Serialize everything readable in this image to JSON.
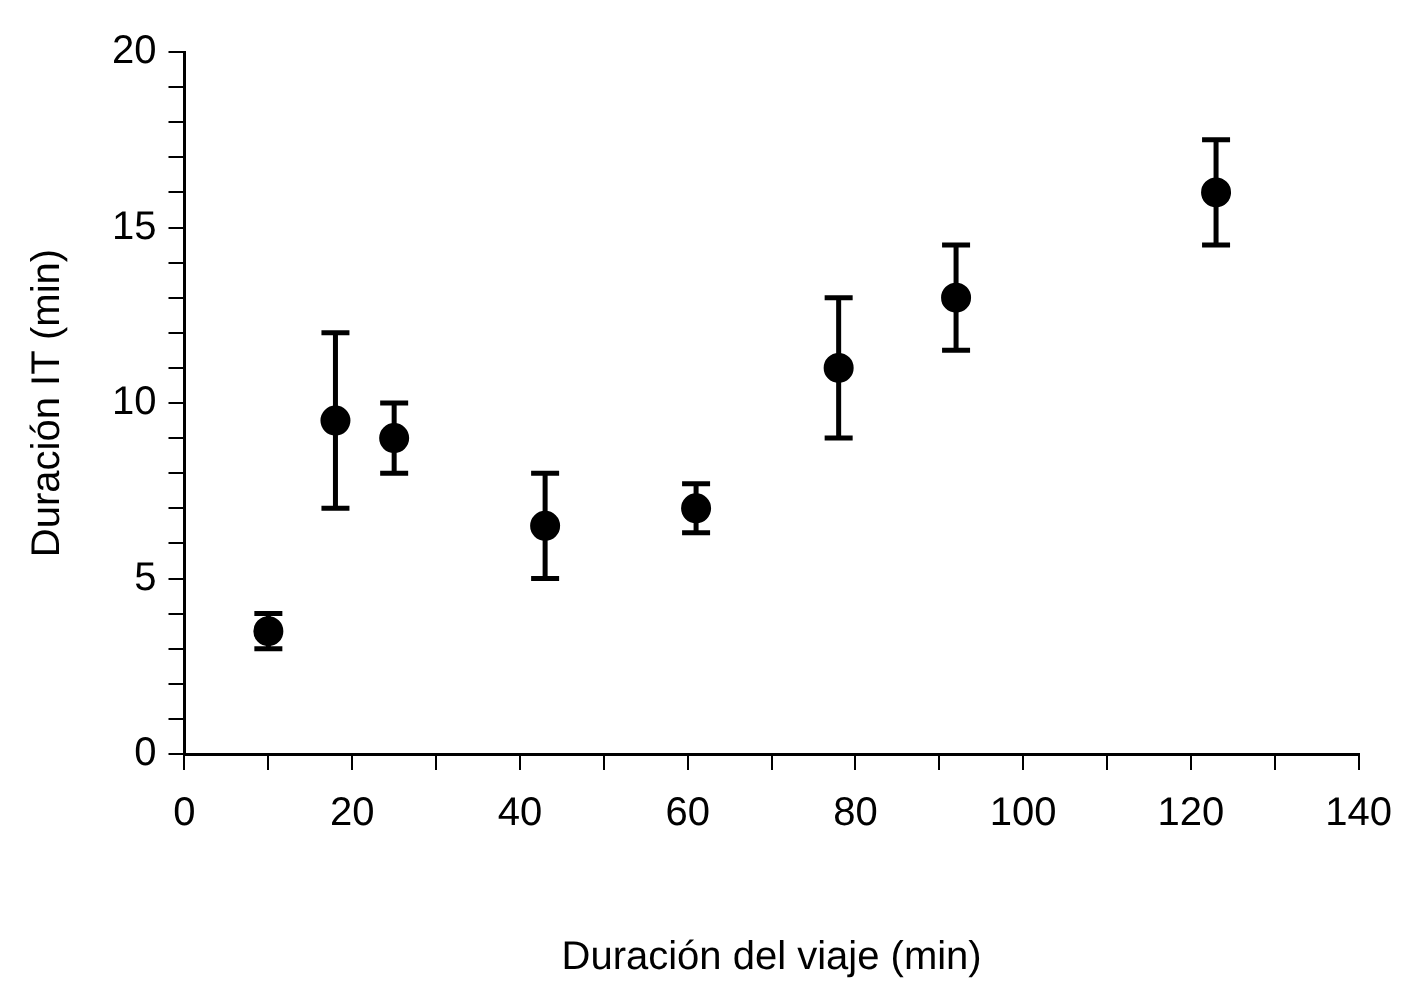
{
  "chart_data": {
    "type": "scatter",
    "xlabel": "Duración del viaje (min)",
    "ylabel": "Duración IT (min)",
    "x": [
      10,
      18,
      25,
      43,
      61,
      78,
      92,
      123
    ],
    "series": [
      {
        "color": "#000000",
        "values": [
          3.5,
          9.5,
          9,
          6.5,
          7,
          11,
          13,
          16
        ],
        "errors": [
          0.5,
          [
            7,
            12
          ],
          [
            8,
            10
          ],
          [
            5,
            8
          ],
          [
            6.3,
            7.7
          ],
          [
            9,
            13
          ],
          [
            11.5,
            14.5
          ],
          [
            14.5,
            17.5
          ]
        ]
      }
    ],
    "xlim": [
      0,
      140
    ],
    "xticks": [
      0,
      {
        "value": 10,
        "label": null
      },
      20,
      {
        "value": 30,
        "label": null
      },
      40,
      {
        "value": 50,
        "label": null
      },
      60,
      {
        "value": 70,
        "label": null
      },
      80,
      {
        "value": 90,
        "label": null
      },
      100,
      {
        "value": 110,
        "label": null
      },
      120,
      {
        "value": 130,
        "label": null
      },
      140
    ],
    "ylim": [
      0,
      20
    ],
    "yticks": [
      0,
      {
        "value": 1,
        "label": null
      },
      {
        "value": 2,
        "label": null
      },
      {
        "value": 3,
        "label": null
      },
      {
        "value": 4,
        "label": null
      },
      5,
      {
        "value": 6,
        "label": null
      },
      {
        "value": 7,
        "label": null
      },
      {
        "value": 8,
        "label": null
      },
      {
        "value": 9,
        "label": null
      },
      10,
      {
        "value": 11,
        "label": null
      },
      {
        "value": 12,
        "label": null
      },
      {
        "value": 13,
        "label": null
      },
      {
        "value": 14,
        "label": null
      },
      15,
      {
        "value": 16,
        "label": null
      },
      {
        "value": 17,
        "label": null
      },
      {
        "value": 18,
        "label": null
      },
      {
        "value": 19,
        "label": null
      },
      20
    ],
    "grid": false,
    "legend": false,
    "marker": "circle"
  }
}
